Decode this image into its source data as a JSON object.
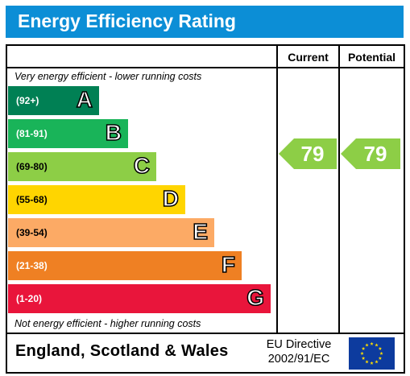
{
  "title": "Energy Efficiency Rating",
  "columns": {
    "current": "Current",
    "potential": "Potential"
  },
  "top_caption": "Very energy efficient - lower running costs",
  "bottom_caption": "Not energy efficient - higher running costs",
  "bands": [
    {
      "letter": "A",
      "range": "(92+)",
      "color": "#008054"
    },
    {
      "letter": "B",
      "range": "(81-91)",
      "color": "#19b459"
    },
    {
      "letter": "C",
      "range": "(69-80)",
      "color": "#8dce46"
    },
    {
      "letter": "D",
      "range": "(55-68)",
      "color": "#ffd500"
    },
    {
      "letter": "E",
      "range": "(39-54)",
      "color": "#fcaa65"
    },
    {
      "letter": "F",
      "range": "(21-38)",
      "color": "#ef8023"
    },
    {
      "letter": "G",
      "range": "(1-20)",
      "color": "#e9153b"
    }
  ],
  "current": {
    "value": "79",
    "color": "#8dce46"
  },
  "potential": {
    "value": "79",
    "color": "#8dce46"
  },
  "footer": {
    "country": "England, Scotland & Wales",
    "directive_line1": "EU Directive",
    "directive_line2": "2002/91/EC"
  },
  "flag": {
    "icon": "eu-flag-icon",
    "color": "#0d3b9e",
    "star_color": "#ffdd00"
  }
}
